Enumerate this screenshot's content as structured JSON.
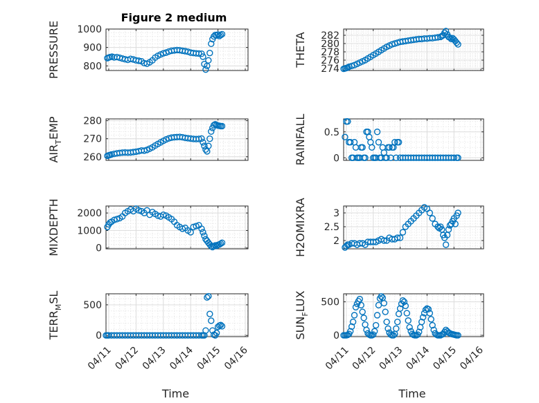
{
  "figure": {
    "title": "Figure 2 medium"
  },
  "chart_data": [
    {
      "type": "scatter",
      "name": "PRESSURE",
      "ylabel_parts": [
        "PRESSURE"
      ],
      "title": "Figure 2 medium",
      "xlabel": "",
      "ylim": [
        775,
        1000
      ],
      "yticks": [
        800,
        900,
        1000
      ],
      "grid": true,
      "x": [
        10.95,
        11.0,
        11.05,
        11.12,
        11.2,
        11.3,
        11.4,
        11.5,
        11.6,
        11.7,
        11.8,
        11.9,
        12.0,
        12.1,
        12.2,
        12.3,
        12.4,
        12.5,
        12.6,
        12.7,
        12.8,
        12.9,
        13.0,
        13.1,
        13.2,
        13.3,
        13.4,
        13.5,
        13.6,
        13.7,
        13.8,
        13.9,
        14.0,
        14.1,
        14.2,
        14.3,
        14.4,
        14.45,
        14.5,
        14.55,
        14.6,
        14.65,
        14.7,
        14.75,
        14.8,
        14.85,
        14.9,
        14.95,
        15.0,
        15.05,
        15.1,
        15.15
      ],
      "y": [
        842,
        845,
        848,
        850,
        846,
        848,
        844,
        840,
        836,
        833,
        838,
        835,
        830,
        828,
        825,
        815,
        812,
        820,
        830,
        845,
        855,
        862,
        868,
        872,
        878,
        882,
        884,
        886,
        885,
        882,
        880,
        877,
        872,
        870,
        868,
        867,
        866,
        850,
        810,
        780,
        800,
        830,
        870,
        920,
        945,
        960,
        968,
        965,
        970,
        962,
        967,
        972
      ]
    },
    {
      "type": "scatter",
      "name": "THETA",
      "ylabel_parts": [
        "THETA"
      ],
      "xlabel": "",
      "ylim": [
        273.5,
        283.5
      ],
      "yticks": [
        274,
        276,
        278,
        280,
        282
      ],
      "grid": true,
      "x": [
        10.9,
        10.95,
        11.0,
        11.05,
        11.1,
        11.2,
        11.3,
        11.4,
        11.5,
        11.6,
        11.7,
        11.8,
        11.9,
        12.0,
        12.1,
        12.2,
        12.3,
        12.4,
        12.5,
        12.6,
        12.7,
        12.8,
        12.9,
        13.0,
        13.1,
        13.2,
        13.3,
        13.4,
        13.5,
        13.6,
        13.7,
        13.8,
        13.9,
        14.0,
        14.1,
        14.2,
        14.3,
        14.4,
        14.5,
        14.55,
        14.6,
        14.65,
        14.7,
        14.75,
        14.8,
        14.85,
        14.9,
        14.95,
        15.0,
        15.05,
        15.1,
        15.15
      ],
      "y": [
        273.9,
        274.0,
        274.1,
        274.2,
        274.4,
        274.6,
        274.8,
        275.1,
        275.4,
        275.7,
        276.0,
        276.4,
        276.8,
        277.2,
        277.6,
        278.0,
        278.4,
        278.8,
        279.2,
        279.5,
        279.8,
        280.0,
        280.2,
        280.4,
        280.5,
        280.6,
        280.7,
        280.8,
        280.9,
        281.0,
        281.1,
        281.1,
        281.2,
        281.2,
        281.3,
        281.3,
        281.4,
        281.5,
        281.6,
        281.8,
        282.0,
        282.6,
        283.0,
        282.2,
        281.6,
        281.4,
        281.1,
        281.3,
        281.0,
        280.6,
        280.2,
        279.8
      ]
    },
    {
      "type": "scatter",
      "name": "AIR_TEMP",
      "ylabel_parts": [
        "AIR",
        "T",
        "EMP"
      ],
      "xlabel": "",
      "ylim": [
        258,
        281
      ],
      "yticks": [
        260,
        270,
        280
      ],
      "grid": true,
      "x": [
        10.95,
        11.0,
        11.05,
        11.1,
        11.2,
        11.3,
        11.4,
        11.5,
        11.6,
        11.7,
        11.8,
        11.9,
        12.0,
        12.1,
        12.2,
        12.3,
        12.4,
        12.5,
        12.6,
        12.7,
        12.8,
        12.9,
        13.0,
        13.1,
        13.2,
        13.3,
        13.4,
        13.5,
        13.6,
        13.7,
        13.8,
        13.9,
        14.0,
        14.1,
        14.2,
        14.3,
        14.4,
        14.45,
        14.5,
        14.55,
        14.6,
        14.65,
        14.7,
        14.75,
        14.8,
        14.85,
        14.9,
        14.95,
        15.0,
        15.05,
        15.1,
        15.15
      ],
      "y": [
        260.5,
        260.8,
        261.0,
        261.3,
        261.6,
        261.9,
        262.1,
        262.3,
        262.4,
        262.3,
        262.4,
        262.6,
        262.8,
        263.1,
        263.5,
        263.4,
        263.8,
        264.5,
        265.2,
        266.2,
        267.1,
        268.0,
        268.8,
        269.6,
        270.2,
        270.6,
        270.8,
        270.9,
        271.0,
        270.8,
        270.5,
        270.3,
        270.1,
        269.9,
        269.8,
        269.9,
        270.1,
        268.0,
        266.0,
        264.0,
        263.0,
        266.0,
        270.0,
        274.0,
        276.0,
        277.5,
        278.0,
        277.6,
        277.3,
        277.2,
        277.0,
        277.0
      ]
    },
    {
      "type": "scatter",
      "name": "RAINFALL",
      "ylabel_parts": [
        "RAINFALL"
      ],
      "xlabel": "",
      "ylim": [
        -0.05,
        0.75
      ],
      "yticks": [
        0,
        0.5
      ],
      "grid": true,
      "x": [
        10.95,
        11.0,
        11.05,
        11.1,
        11.15,
        11.2,
        11.25,
        11.3,
        11.35,
        11.4,
        11.45,
        11.5,
        11.55,
        11.6,
        11.65,
        11.7,
        11.75,
        11.8,
        11.85,
        11.9,
        11.95,
        12.0,
        12.05,
        12.1,
        12.15,
        12.2,
        12.25,
        12.3,
        12.35,
        12.4,
        12.45,
        12.5,
        12.55,
        12.6,
        12.65,
        12.7,
        12.75,
        12.8,
        12.85,
        12.9,
        12.95,
        13.0,
        13.1,
        13.2,
        13.3,
        13.4,
        13.5,
        13.6,
        13.7,
        13.8,
        13.9,
        14.0,
        14.1,
        14.2,
        14.3,
        14.4,
        14.5,
        14.6,
        14.7,
        14.8,
        14.9,
        15.0,
        15.1,
        15.15
      ],
      "y": [
        0.4,
        0.7,
        0.7,
        0.3,
        0.3,
        0.0,
        0.0,
        0.3,
        0.2,
        0.0,
        0.0,
        0.0,
        0.2,
        0.2,
        0.0,
        0.0,
        0.5,
        0.5,
        0.4,
        0.3,
        0.2,
        0.0,
        0.0,
        0.0,
        0.5,
        0.3,
        0.0,
        0.0,
        0.2,
        0.1,
        0.0,
        0.0,
        0.2,
        0.2,
        0.0,
        0.2,
        0.2,
        0.3,
        0.0,
        0.3,
        0.3,
        0.0,
        0.0,
        0.0,
        0.0,
        0.0,
        0.0,
        0.0,
        0.0,
        0.0,
        0.0,
        0.0,
        0.0,
        0.0,
        0.0,
        0.0,
        0.0,
        0.0,
        0.0,
        0.0,
        0.0,
        0.0,
        0.0,
        0.0
      ]
    },
    {
      "type": "scatter",
      "name": "MIXDEPTH",
      "ylabel_parts": [
        "MIXDEPTH"
      ],
      "xlabel": "",
      "ylim": [
        -50,
        2400
      ],
      "yticks": [
        0,
        1000,
        2000
      ],
      "grid": true,
      "x": [
        10.95,
        11.0,
        11.05,
        11.1,
        11.2,
        11.3,
        11.4,
        11.5,
        11.6,
        11.7,
        11.8,
        11.9,
        12.0,
        12.1,
        12.2,
        12.3,
        12.4,
        12.5,
        12.6,
        12.7,
        12.8,
        12.9,
        13.0,
        13.1,
        13.2,
        13.3,
        13.4,
        13.5,
        13.6,
        13.7,
        13.8,
        13.9,
        14.0,
        14.1,
        14.2,
        14.3,
        14.4,
        14.45,
        14.5,
        14.55,
        14.6,
        14.65,
        14.7,
        14.75,
        14.8,
        14.85,
        14.9,
        14.95,
        15.0,
        15.05,
        15.1,
        15.15
      ],
      "y": [
        1200,
        1350,
        1450,
        1500,
        1600,
        1650,
        1700,
        1800,
        2000,
        2100,
        2200,
        2100,
        2250,
        2150,
        2100,
        2000,
        2150,
        1900,
        2050,
        1950,
        1850,
        1800,
        1900,
        1850,
        1750,
        1650,
        1500,
        1300,
        1200,
        1100,
        1150,
        1000,
        900,
        1200,
        1250,
        1300,
        1100,
        900,
        700,
        500,
        400,
        300,
        200,
        100,
        50,
        100,
        150,
        120,
        180,
        200,
        250,
        300
      ]
    },
    {
      "type": "scatter",
      "name": "H2OMIXRA",
      "ylabel_parts": [
        "H2OMIXRA"
      ],
      "xlabel": "",
      "ylim": [
        1.7,
        3.25
      ],
      "yticks": [
        2,
        2.5,
        3
      ],
      "grid": true,
      "x": [
        10.95,
        11.0,
        11.05,
        11.1,
        11.2,
        11.3,
        11.4,
        11.5,
        11.6,
        11.7,
        11.8,
        11.9,
        12.0,
        12.1,
        12.2,
        12.3,
        12.4,
        12.5,
        12.6,
        12.7,
        12.8,
        12.9,
        13.0,
        13.1,
        13.2,
        13.3,
        13.4,
        13.5,
        13.6,
        13.7,
        13.8,
        13.9,
        14.0,
        14.1,
        14.2,
        14.3,
        14.4,
        14.45,
        14.5,
        14.55,
        14.6,
        14.65,
        14.7,
        14.75,
        14.8,
        14.85,
        14.9,
        14.95,
        15.0,
        15.05,
        15.1,
        15.15
      ],
      "y": [
        1.75,
        1.8,
        1.85,
        1.85,
        1.9,
        1.9,
        1.85,
        1.9,
        1.9,
        1.85,
        1.95,
        1.95,
        1.95,
        1.95,
        2.0,
        2.05,
        2.0,
        2.0,
        2.1,
        2.05,
        2.05,
        2.1,
        2.1,
        2.3,
        2.5,
        2.6,
        2.7,
        2.8,
        2.9,
        3.0,
        3.1,
        3.2,
        3.15,
        3.0,
        2.8,
        2.6,
        2.5,
        2.45,
        2.5,
        2.4,
        2.2,
        2.1,
        1.85,
        2.2,
        2.4,
        2.55,
        2.6,
        2.7,
        2.8,
        2.6,
        2.9,
        3.0
      ]
    },
    {
      "type": "scatter",
      "name": "TERR_MSL",
      "ylabel_parts": [
        "TERR",
        "M",
        "SL"
      ],
      "xlabel": "Time",
      "ylim": [
        -20,
        680
      ],
      "yticks": [
        0,
        500
      ],
      "grid": true,
      "x": [
        10.9,
        10.95,
        11.0,
        11.1,
        11.2,
        11.3,
        11.4,
        11.5,
        11.6,
        11.7,
        11.8,
        11.9,
        12.0,
        12.1,
        12.2,
        12.3,
        12.4,
        12.5,
        12.6,
        12.7,
        12.8,
        12.9,
        13.0,
        13.1,
        13.2,
        13.3,
        13.4,
        13.5,
        13.6,
        13.7,
        13.8,
        13.9,
        14.0,
        14.1,
        14.2,
        14.3,
        14.4,
        14.45,
        14.5,
        14.55,
        14.6,
        14.65,
        14.7,
        14.75,
        14.8,
        14.85,
        14.9,
        14.95,
        15.0,
        15.05,
        15.1,
        15.15
      ],
      "y": [
        0,
        0,
        0,
        0,
        0,
        0,
        0,
        0,
        0,
        0,
        0,
        0,
        0,
        0,
        0,
        0,
        0,
        0,
        0,
        0,
        0,
        0,
        0,
        0,
        0,
        0,
        0,
        0,
        0,
        0,
        0,
        0,
        0,
        0,
        0,
        0,
        0,
        0,
        0,
        80,
        620,
        640,
        350,
        240,
        80,
        10,
        0,
        40,
        140,
        160,
        170,
        150
      ]
    },
    {
      "type": "scatter",
      "name": "SUN_FLUX",
      "ylabel_parts": [
        "SUN",
        "F",
        "LUX"
      ],
      "xlabel": "Time",
      "ylim": [
        -20,
        620
      ],
      "yticks": [
        0,
        500
      ],
      "grid": true,
      "x": [
        10.9,
        10.95,
        11.0,
        11.05,
        11.1,
        11.15,
        11.2,
        11.25,
        11.3,
        11.35,
        11.4,
        11.45,
        11.5,
        11.55,
        11.6,
        11.65,
        11.7,
        11.75,
        11.8,
        11.85,
        11.9,
        11.95,
        12.0,
        12.05,
        12.1,
        12.15,
        12.2,
        12.25,
        12.3,
        12.35,
        12.4,
        12.45,
        12.5,
        12.55,
        12.6,
        12.65,
        12.7,
        12.75,
        12.8,
        12.85,
        12.9,
        12.95,
        13.0,
        13.05,
        13.1,
        13.15,
        13.2,
        13.25,
        13.3,
        13.35,
        13.4,
        13.45,
        13.5,
        13.55,
        13.6,
        13.65,
        13.7,
        13.75,
        13.8,
        13.85,
        13.9,
        13.95,
        14.0,
        14.05,
        14.1,
        14.15,
        14.2,
        14.25,
        14.3,
        14.35,
        14.4,
        14.45,
        14.5,
        14.55,
        14.6,
        14.65,
        14.7,
        14.75,
        14.8,
        14.85,
        14.9,
        14.95,
        15.0,
        15.05,
        15.1,
        15.15
      ],
      "y": [
        0,
        0,
        0,
        5,
        20,
        60,
        130,
        200,
        300,
        420,
        470,
        510,
        540,
        450,
        350,
        260,
        160,
        80,
        30,
        10,
        0,
        0,
        10,
        60,
        150,
        300,
        450,
        550,
        580,
        560,
        480,
        350,
        200,
        100,
        40,
        10,
        0,
        0,
        20,
        100,
        200,
        320,
        400,
        470,
        520,
        500,
        440,
        330,
        220,
        120,
        60,
        20,
        5,
        0,
        0,
        10,
        50,
        120,
        200,
        270,
        330,
        380,
        400,
        390,
        330,
        240,
        150,
        80,
        30,
        10,
        0,
        0,
        0,
        10,
        20,
        50,
        80,
        60,
        40,
        30,
        20,
        15,
        10,
        5,
        0,
        0
      ]
    }
  ],
  "x_axis": {
    "xlim": [
      10.9,
      16.1
    ],
    "ticks": [
      {
        "value": 11,
        "label": "04/11"
      },
      {
        "value": 12,
        "label": "04/12"
      },
      {
        "value": 13,
        "label": "04/13"
      },
      {
        "value": 14,
        "label": "04/14"
      },
      {
        "value": 15,
        "label": "04/15"
      },
      {
        "value": 16,
        "label": "04/16"
      }
    ]
  },
  "colors": {
    "marker": "#0072bd",
    "axis": "#262626",
    "grid": "#dcdcdc"
  }
}
